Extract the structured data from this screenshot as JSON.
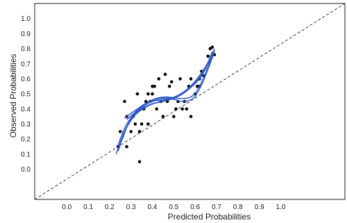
{
  "chart_data": {
    "type": "scatter",
    "xlabel": "Predicted Probabilities",
    "ylabel": "Observed Probabilities",
    "xlim": [
      -0.15,
      1.3
    ],
    "ylim": [
      -0.2,
      1.1
    ],
    "x_ticks": [
      "0.0",
      "0.1",
      "0.2",
      "0.3",
      "0.4",
      "0.5",
      "0.6",
      "0.7",
      "0.8",
      "0.9",
      "1.0"
    ],
    "y_ticks": [
      "0.0",
      "0.1",
      "0.2",
      "0.3",
      "0.4",
      "0.5",
      "0.6",
      "0.7",
      "0.8",
      "0.9",
      "1.0"
    ],
    "grid": false,
    "reference_line": {
      "style": "dashed",
      "color": "#333333",
      "from": [
        -0.15,
        -0.2
      ],
      "to": [
        1.3,
        1.1
      ]
    },
    "points": [
      [
        0.24,
        0.15
      ],
      [
        0.25,
        0.25
      ],
      [
        0.27,
        0.45
      ],
      [
        0.28,
        0.15
      ],
      [
        0.28,
        0.35
      ],
      [
        0.3,
        0.25
      ],
      [
        0.31,
        0.35
      ],
      [
        0.32,
        0.3
      ],
      [
        0.33,
        0.5
      ],
      [
        0.34,
        0.05
      ],
      [
        0.34,
        0.25
      ],
      [
        0.35,
        0.3
      ],
      [
        0.36,
        0.4
      ],
      [
        0.37,
        0.45
      ],
      [
        0.38,
        0.3
      ],
      [
        0.38,
        0.5
      ],
      [
        0.39,
        0.45
      ],
      [
        0.4,
        0.55
      ],
      [
        0.4,
        0.5
      ],
      [
        0.41,
        0.55
      ],
      [
        0.42,
        0.4
      ],
      [
        0.43,
        0.6
      ],
      [
        0.44,
        0.45
      ],
      [
        0.45,
        0.35
      ],
      [
        0.46,
        0.63
      ],
      [
        0.47,
        0.45
      ],
      [
        0.48,
        0.55
      ],
      [
        0.49,
        0.58
      ],
      [
        0.5,
        0.35
      ],
      [
        0.51,
        0.4
      ],
      [
        0.52,
        0.45
      ],
      [
        0.53,
        0.6
      ],
      [
        0.54,
        0.4
      ],
      [
        0.55,
        0.45
      ],
      [
        0.56,
        0.4
      ],
      [
        0.57,
        0.55
      ],
      [
        0.58,
        0.35
      ],
      [
        0.58,
        0.6
      ],
      [
        0.6,
        0.5
      ],
      [
        0.61,
        0.55
      ],
      [
        0.62,
        0.55
      ],
      [
        0.62,
        0.6
      ],
      [
        0.63,
        0.65
      ],
      [
        0.64,
        0.62
      ],
      [
        0.66,
        0.75
      ],
      [
        0.67,
        0.8
      ],
      [
        0.68,
        0.81
      ],
      [
        0.69,
        0.76
      ]
    ],
    "fit_curves": {
      "color": "#2b57c4",
      "curves": [
        [
          [
            0.23,
            0.1
          ],
          [
            0.27,
            0.25
          ],
          [
            0.32,
            0.36
          ],
          [
            0.38,
            0.42
          ],
          [
            0.44,
            0.45
          ],
          [
            0.5,
            0.47
          ],
          [
            0.56,
            0.52
          ],
          [
            0.62,
            0.6
          ],
          [
            0.66,
            0.7
          ],
          [
            0.68,
            0.76
          ]
        ],
        [
          [
            0.24,
            0.12
          ],
          [
            0.28,
            0.28
          ],
          [
            0.33,
            0.38
          ],
          [
            0.39,
            0.43
          ],
          [
            0.45,
            0.45
          ],
          [
            0.51,
            0.48
          ],
          [
            0.57,
            0.54
          ],
          [
            0.62,
            0.62
          ],
          [
            0.66,
            0.71
          ],
          [
            0.68,
            0.78
          ]
        ],
        [
          [
            0.24,
            0.16
          ],
          [
            0.28,
            0.3
          ],
          [
            0.34,
            0.4
          ],
          [
            0.4,
            0.45
          ],
          [
            0.46,
            0.46
          ],
          [
            0.52,
            0.49
          ],
          [
            0.58,
            0.55
          ],
          [
            0.63,
            0.63
          ],
          [
            0.67,
            0.73
          ],
          [
            0.69,
            0.79
          ]
        ],
        [
          [
            0.26,
            0.2
          ],
          [
            0.3,
            0.34
          ],
          [
            0.35,
            0.42
          ],
          [
            0.41,
            0.46
          ],
          [
            0.47,
            0.47
          ],
          [
            0.53,
            0.49
          ],
          [
            0.59,
            0.56
          ],
          [
            0.64,
            0.65
          ],
          [
            0.68,
            0.77
          ]
        ],
        [
          [
            0.27,
            0.34
          ],
          [
            0.33,
            0.4
          ],
          [
            0.4,
            0.46
          ],
          [
            0.46,
            0.48
          ],
          [
            0.52,
            0.47
          ],
          [
            0.58,
            0.48
          ],
          [
            0.62,
            0.55
          ],
          [
            0.66,
            0.68
          ],
          [
            0.69,
            0.8
          ]
        ],
        [
          [
            0.28,
            0.33
          ],
          [
            0.35,
            0.41
          ],
          [
            0.42,
            0.47
          ],
          [
            0.48,
            0.47
          ],
          [
            0.54,
            0.45
          ],
          [
            0.59,
            0.47
          ],
          [
            0.63,
            0.56
          ],
          [
            0.67,
            0.7
          ],
          [
            0.69,
            0.78
          ]
        ]
      ]
    }
  }
}
